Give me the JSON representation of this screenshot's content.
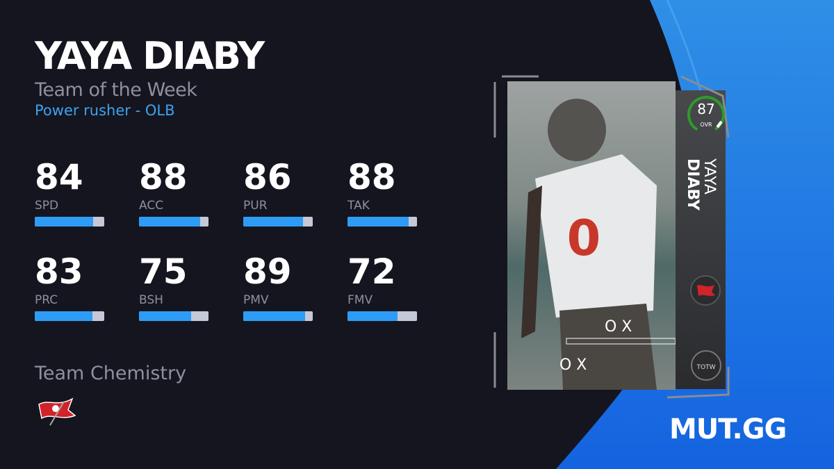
{
  "player": {
    "name": "YAYA DIABY",
    "first": "YAYA",
    "last": "DIABY",
    "program": "Team of the Week",
    "archetype": "Power rusher - OLB",
    "overall": "87",
    "overall_label": "OVR"
  },
  "stats": [
    {
      "label": "SPD",
      "value": 84
    },
    {
      "label": "ACC",
      "value": 88
    },
    {
      "label": "PUR",
      "value": 86
    },
    {
      "label": "TAK",
      "value": 88
    },
    {
      "label": "PRC",
      "value": 83
    },
    {
      "label": "BSH",
      "value": 75
    },
    {
      "label": "PMV",
      "value": 89
    },
    {
      "label": "FMV",
      "value": 72
    }
  ],
  "chemistry": {
    "label": "Team Chemistry",
    "team_icon": "buccaneers-flag-icon"
  },
  "brand": {
    "logo": "MUT.GG"
  },
  "colors": {
    "background": "#14151e",
    "accent": "#3ea2f2",
    "bar_fill": "#2e9cf7",
    "bar_track": "#c5c8d6",
    "ovr_ring": "#2e9a2a",
    "brand_blue": "#1a72e8"
  }
}
